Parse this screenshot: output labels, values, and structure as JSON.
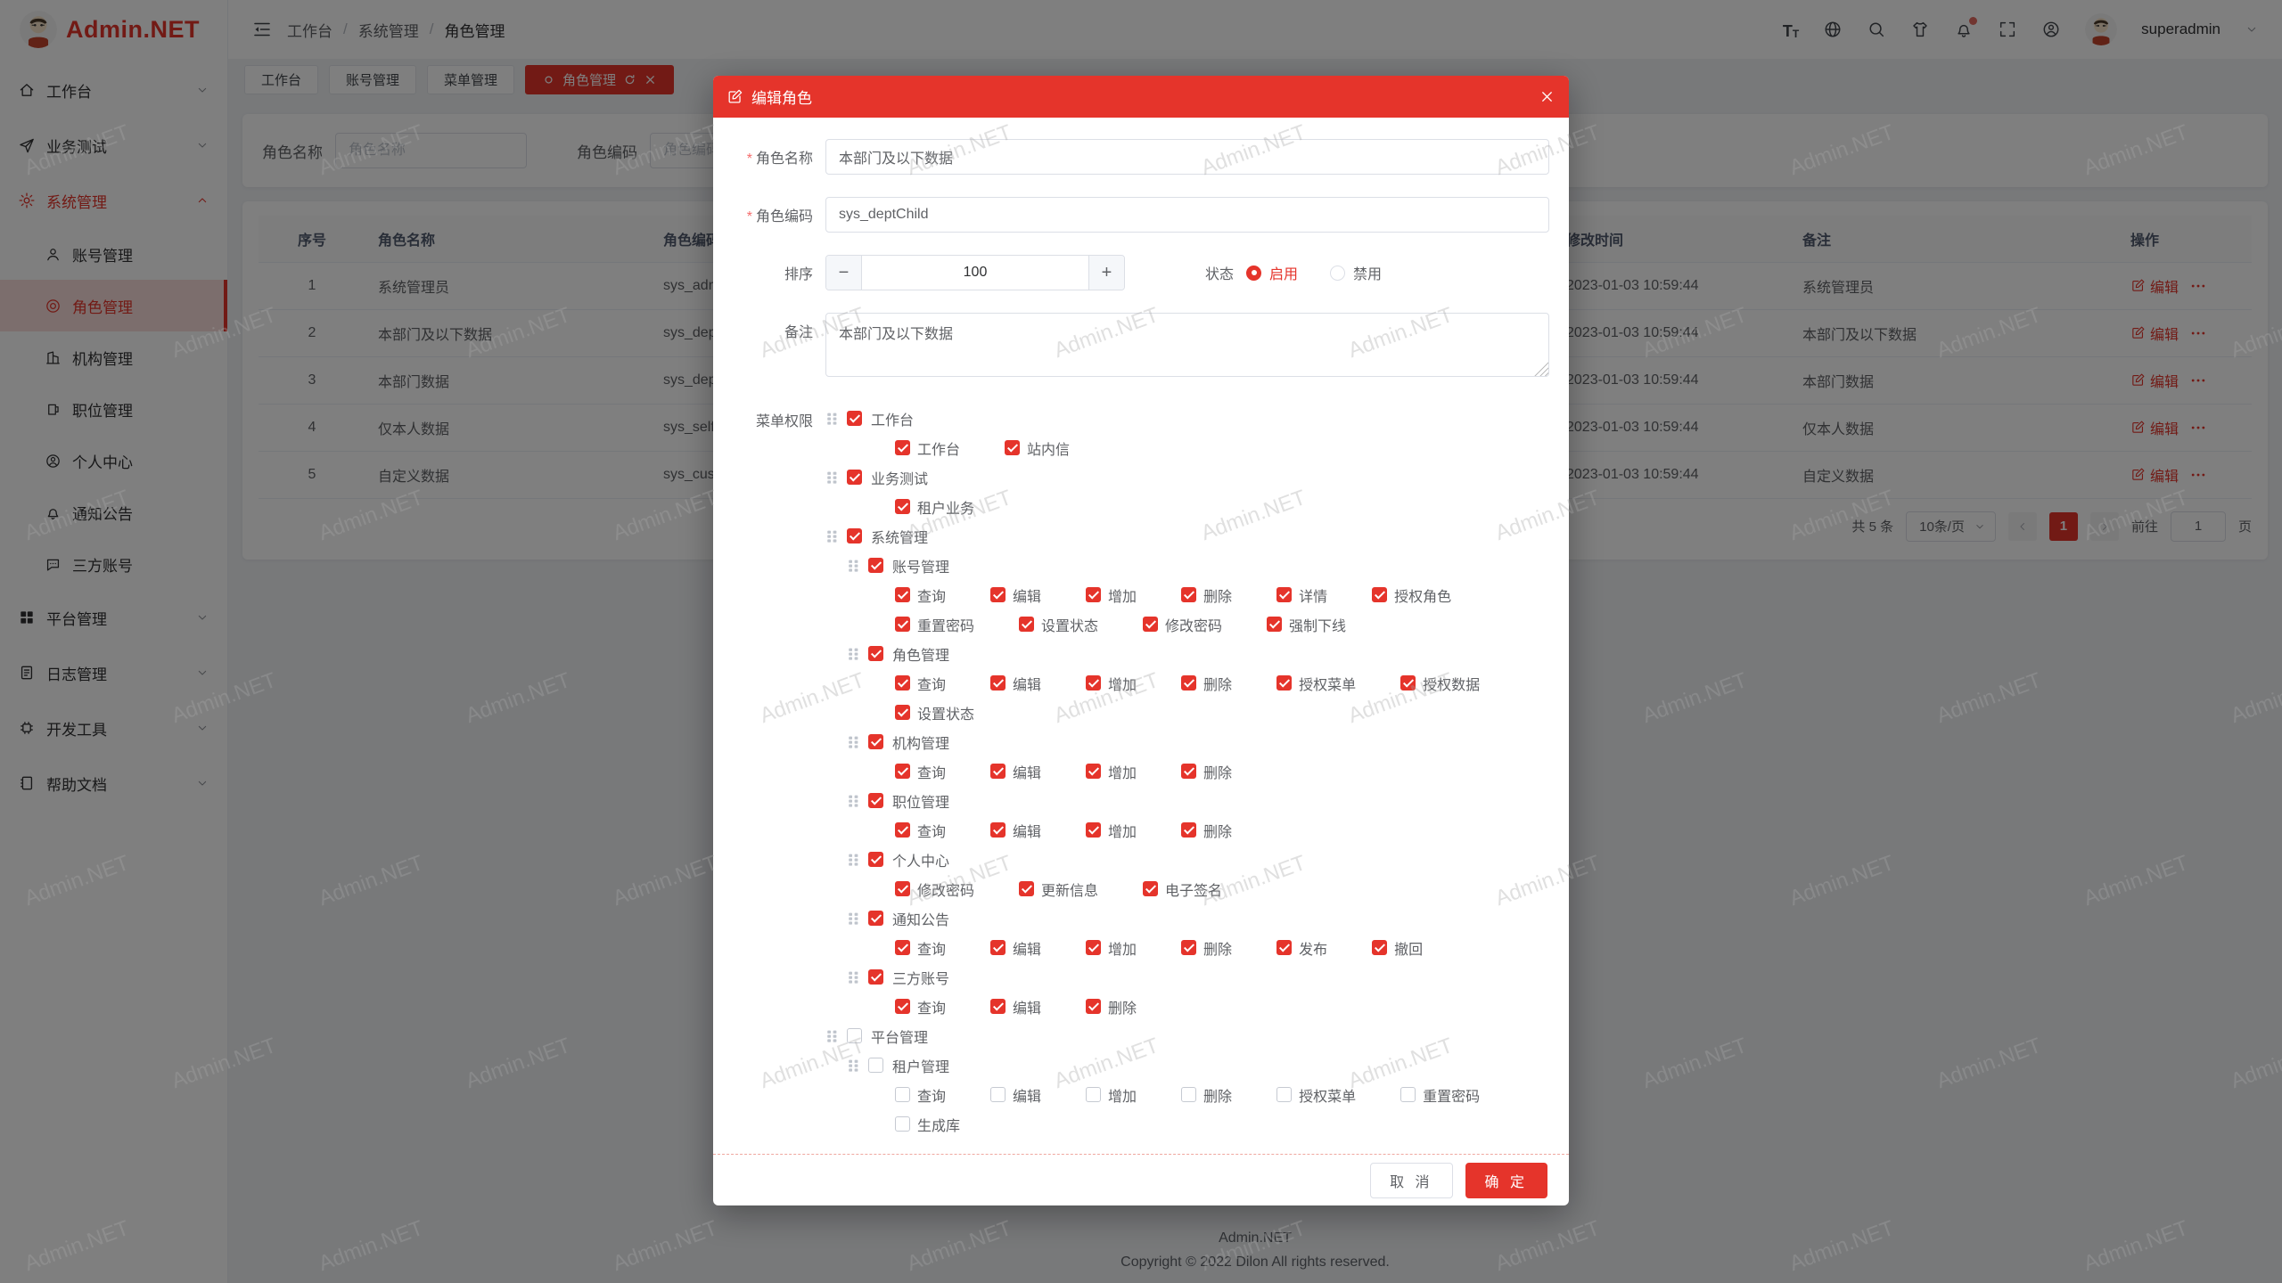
{
  "app": {
    "watermark": "Admin.NET"
  },
  "colors": {
    "primary": "#e5342b",
    "modal_header": "#e5342b",
    "sidebar_active_bg": "#f8ddda",
    "overlay": "rgba(0,0,0,0.5)"
  },
  "sidebar": {
    "logo_text": "Admin.NET",
    "items": [
      {
        "icon": "home-icon",
        "label": "工作台",
        "arrow": "down"
      },
      {
        "icon": "send-icon",
        "label": "业务测试",
        "arrow": "down"
      },
      {
        "icon": "gear-icon",
        "label": "系统管理",
        "arrow": "up",
        "active": true,
        "children": [
          {
            "icon": "user-icon",
            "label": "账号管理"
          },
          {
            "icon": "role-icon",
            "label": "角色管理",
            "active": true
          },
          {
            "icon": "org-icon",
            "label": "机构管理"
          },
          {
            "icon": "position-icon",
            "label": "职位管理"
          },
          {
            "icon": "profile-icon",
            "label": "个人中心"
          },
          {
            "icon": "bell-icon",
            "label": "通知公告"
          },
          {
            "icon": "chat-icon",
            "label": "三方账号"
          }
        ]
      },
      {
        "icon": "grid-icon",
        "label": "平台管理",
        "arrow": "down"
      },
      {
        "icon": "log-icon",
        "label": "日志管理",
        "arrow": "down"
      },
      {
        "icon": "chip-icon",
        "label": "开发工具",
        "arrow": "down"
      },
      {
        "icon": "book-icon",
        "label": "帮助文档",
        "arrow": "down"
      }
    ]
  },
  "topbar": {
    "breadcrumb": [
      "工作台",
      "系统管理",
      "角色管理"
    ],
    "separator": "/",
    "icons": [
      "font-size-icon",
      "language-icon",
      "search-icon",
      "theme-icon",
      "notification-icon",
      "fullscreen-icon",
      "profile-icon"
    ],
    "username": "superadmin"
  },
  "tabs": [
    {
      "label": "工作台",
      "active": false
    },
    {
      "label": "账号管理",
      "active": false
    },
    {
      "label": "菜单管理",
      "active": false
    },
    {
      "label": "角色管理",
      "active": true
    }
  ],
  "filters": {
    "name_label": "角色名称",
    "name_placeholder": "角色名称",
    "code_label": "角色编码",
    "code_placeholder": "角色编码"
  },
  "table": {
    "headers": [
      "序号",
      "角色名称",
      "角色编码",
      "修改时间",
      "备注",
      "操作"
    ],
    "rows": [
      {
        "index": "1",
        "name": "系统管理员",
        "code": "sys_admin",
        "time": "2023-01-03 10:59:44",
        "remark": "系统管理员"
      },
      {
        "index": "2",
        "name": "本部门及以下数据",
        "code": "sys_deptChild",
        "time": "2023-01-03 10:59:44",
        "remark": "本部门及以下数据"
      },
      {
        "index": "3",
        "name": "本部门数据",
        "code": "sys_dept",
        "time": "2023-01-03 10:59:44",
        "remark": "本部门数据"
      },
      {
        "index": "4",
        "name": "仅本人数据",
        "code": "sys_self",
        "time": "2023-01-03 10:59:44",
        "remark": "仅本人数据"
      },
      {
        "index": "5",
        "name": "自定义数据",
        "code": "sys_custom",
        "time": "2023-01-03 10:59:44",
        "remark": "自定义数据"
      }
    ],
    "edit_label": "编辑"
  },
  "pagination": {
    "total": "共 5 条",
    "page_size": "10条/页",
    "current": "1",
    "goto_label": "前往",
    "goto_value": "1",
    "page_suffix": "页"
  },
  "modal": {
    "title": "编辑角色",
    "name_label": "角色名称",
    "name_value": "本部门及以下数据",
    "code_label": "角色编码",
    "code_value": "sys_deptChild",
    "sort_label": "排序",
    "sort_value": "100",
    "status_label": "状态",
    "status_options": [
      {
        "label": "启用",
        "selected": true
      },
      {
        "label": "禁用",
        "selected": false
      }
    ],
    "remark_label": "备注",
    "remark_value": "本部门及以下数据",
    "menu_label": "菜单权限",
    "tree": [
      {
        "label": "工作台",
        "level": 1,
        "checked": true,
        "lines": [
          [
            {
              "label": "工作台",
              "checked": true
            },
            {
              "label": "站内信",
              "checked": true
            }
          ]
        ]
      },
      {
        "label": "业务测试",
        "level": 1,
        "checked": true,
        "lines": [
          [
            {
              "label": "租户业务",
              "checked": true
            }
          ]
        ]
      },
      {
        "label": "系统管理",
        "level": 1,
        "checked": true,
        "lines": []
      },
      {
        "label": "账号管理",
        "level": 2,
        "checked": true,
        "lines": [
          [
            {
              "label": "查询",
              "checked": true
            },
            {
              "label": "编辑",
              "checked": true
            },
            {
              "label": "增加",
              "checked": true
            },
            {
              "label": "删除",
              "checked": true
            },
            {
              "label": "详情",
              "checked": true
            },
            {
              "label": "授权角色",
              "checked": true
            }
          ],
          [
            {
              "label": "重置密码",
              "checked": true
            },
            {
              "label": "设置状态",
              "checked": true
            },
            {
              "label": "修改密码",
              "checked": true
            },
            {
              "label": "强制下线",
              "checked": true
            }
          ]
        ]
      },
      {
        "label": "角色管理",
        "level": 2,
        "checked": true,
        "lines": [
          [
            {
              "label": "查询",
              "checked": true
            },
            {
              "label": "编辑",
              "checked": true
            },
            {
              "label": "增加",
              "checked": true
            },
            {
              "label": "删除",
              "checked": true
            },
            {
              "label": "授权菜单",
              "checked": true
            },
            {
              "label": "授权数据",
              "checked": true
            }
          ],
          [
            {
              "label": "设置状态",
              "checked": true
            }
          ]
        ]
      },
      {
        "label": "机构管理",
        "level": 2,
        "checked": true,
        "lines": [
          [
            {
              "label": "查询",
              "checked": true
            },
            {
              "label": "编辑",
              "checked": true
            },
            {
              "label": "增加",
              "checked": true
            },
            {
              "label": "删除",
              "checked": true
            }
          ]
        ]
      },
      {
        "label": "职位管理",
        "level": 2,
        "checked": true,
        "lines": [
          [
            {
              "label": "查询",
              "checked": true
            },
            {
              "label": "编辑",
              "checked": true
            },
            {
              "label": "增加",
              "checked": true
            },
            {
              "label": "删除",
              "checked": true
            }
          ]
        ]
      },
      {
        "label": "个人中心",
        "level": 2,
        "checked": true,
        "lines": [
          [
            {
              "label": "修改密码",
              "checked": true
            },
            {
              "label": "更新信息",
              "checked": true
            },
            {
              "label": "电子签名",
              "checked": true
            }
          ]
        ]
      },
      {
        "label": "通知公告",
        "level": 2,
        "checked": true,
        "lines": [
          [
            {
              "label": "查询",
              "checked": true
            },
            {
              "label": "编辑",
              "checked": true
            },
            {
              "label": "增加",
              "checked": true
            },
            {
              "label": "删除",
              "checked": true
            },
            {
              "label": "发布",
              "checked": true
            },
            {
              "label": "撤回",
              "checked": true
            }
          ]
        ]
      },
      {
        "label": "三方账号",
        "level": 2,
        "checked": true,
        "lines": [
          [
            {
              "label": "查询",
              "checked": true
            },
            {
              "label": "编辑",
              "checked": true
            },
            {
              "label": "删除",
              "checked": true
            }
          ]
        ]
      },
      {
        "label": "平台管理",
        "level": 1,
        "checked": false,
        "lines": []
      },
      {
        "label": "租户管理",
        "level": 2,
        "checked": false,
        "lines": [
          [
            {
              "label": "查询",
              "checked": false
            },
            {
              "label": "编辑",
              "checked": false
            },
            {
              "label": "增加",
              "checked": false
            },
            {
              "label": "删除",
              "checked": false
            },
            {
              "label": "授权菜单",
              "checked": false
            },
            {
              "label": "重置密码",
              "checked": false
            }
          ],
          [
            {
              "label": "生成库",
              "checked": false
            }
          ]
        ]
      }
    ],
    "cancel_label": "取 消",
    "confirm_label": "确 定"
  },
  "page_footer": {
    "line1": "Admin.NET",
    "line2": "Copyright © 2022 Dilon All rights reserved."
  }
}
